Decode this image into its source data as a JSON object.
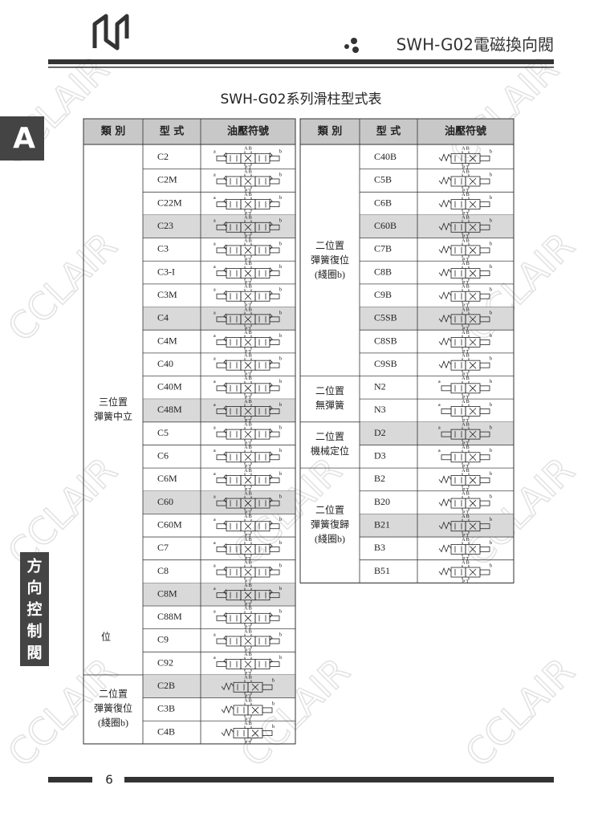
{
  "header": {
    "title": "SWH-G02電磁換向閥",
    "tab": "A",
    "side_tab": "方向控制閥"
  },
  "watermark": "CCLAIR",
  "table_title": "SWH-G02系列滑柱型式表",
  "columns": [
    "類 別",
    "型 式",
    "油壓符號"
  ],
  "symbol_text": {
    "top": "A B",
    "bottom": "P T",
    "a": "a",
    "b": "b"
  },
  "left": {
    "groups": [
      {
        "label": [
          "三位置",
          "彈簧中立"
        ],
        "note": "位",
        "rows": [
          {
            "model": "C2",
            "symbol": "3pos"
          },
          {
            "model": "C2M",
            "symbol": "3pos-ab"
          },
          {
            "model": "C22M",
            "symbol": "3pos-ab"
          },
          {
            "model": "C23",
            "symbol": "3pos",
            "highlight": true
          },
          {
            "model": "C3",
            "symbol": "3pos"
          },
          {
            "model": "C3-I",
            "symbol": "3pos"
          },
          {
            "model": "C3M",
            "symbol": "3pos-ab"
          },
          {
            "model": "C4",
            "symbol": "3pos",
            "highlight": true
          },
          {
            "model": "C4M",
            "symbol": "3pos-ab"
          },
          {
            "model": "C40",
            "symbol": "3pos"
          },
          {
            "model": "C40M",
            "symbol": "3pos-ab"
          },
          {
            "model": "C48M",
            "symbol": "3pos-ab",
            "highlight": true
          },
          {
            "model": "C5",
            "symbol": "3pos"
          },
          {
            "model": "C6",
            "symbol": "3pos"
          },
          {
            "model": "C6M",
            "symbol": "3pos-ab"
          },
          {
            "model": "C60",
            "symbol": "3pos-ab",
            "highlight": true
          },
          {
            "model": "C60M",
            "symbol": "3pos-ab"
          },
          {
            "model": "C7",
            "symbol": "3pos"
          },
          {
            "model": "C8",
            "symbol": "3pos"
          },
          {
            "model": "C8M",
            "symbol": "3pos-ab",
            "highlight": true
          },
          {
            "model": "C88M",
            "symbol": "3pos-ab"
          },
          {
            "model": "C9",
            "symbol": "3pos"
          },
          {
            "model": "C92",
            "symbol": "3pos"
          }
        ]
      },
      {
        "label": [
          "二位置",
          "彈簧復位",
          "(綫圈b)"
        ],
        "rows": [
          {
            "model": "C2B",
            "symbol": "2pos-b",
            "highlight": true
          },
          {
            "model": "C3B",
            "symbol": "2pos-b"
          },
          {
            "model": "C4B",
            "symbol": "2pos-b"
          }
        ]
      }
    ]
  },
  "right": {
    "groups": [
      {
        "label": [
          "二位置",
          "彈簧復位",
          "(綫圈b)"
        ],
        "rows": [
          {
            "model": "C40B",
            "symbol": "2pos-b"
          },
          {
            "model": "C5B",
            "symbol": "2pos-b"
          },
          {
            "model": "C6B",
            "symbol": "2pos-b"
          },
          {
            "model": "C60B",
            "symbol": "2pos-b",
            "highlight": true
          },
          {
            "model": "C7B",
            "symbol": "2pos-b"
          },
          {
            "model": "C8B",
            "symbol": "2pos-b"
          },
          {
            "model": "C9B",
            "symbol": "2pos-b"
          },
          {
            "model": "C5SB",
            "symbol": "2pos-b",
            "highlight": true
          },
          {
            "model": "C8SB",
            "symbol": "2pos-b"
          },
          {
            "model": "C9SB",
            "symbol": "2pos-b"
          }
        ]
      },
      {
        "label": [
          "二位置",
          "無彈簧"
        ],
        "rows": [
          {
            "model": "N2",
            "symbol": "2pos-ab"
          },
          {
            "model": "N3",
            "symbol": "2pos-ab"
          }
        ]
      },
      {
        "label": [
          "二位置",
          "機械定位"
        ],
        "rows": [
          {
            "model": "D2",
            "symbol": "2pos-ab",
            "highlight": true
          },
          {
            "model": "D3",
            "symbol": "2pos-ab"
          }
        ]
      },
      {
        "label": [
          "二位置",
          "彈簧復歸",
          "(綫圈b)"
        ],
        "rows": [
          {
            "model": "B2",
            "symbol": "2pos-b"
          },
          {
            "model": "B20",
            "symbol": "2pos-b"
          },
          {
            "model": "B21",
            "symbol": "2pos-b",
            "highlight": true
          },
          {
            "model": "B3",
            "symbol": "2pos-b"
          },
          {
            "model": "B51",
            "symbol": "2pos-b"
          }
        ]
      }
    ]
  },
  "footer": {
    "page": "6"
  }
}
